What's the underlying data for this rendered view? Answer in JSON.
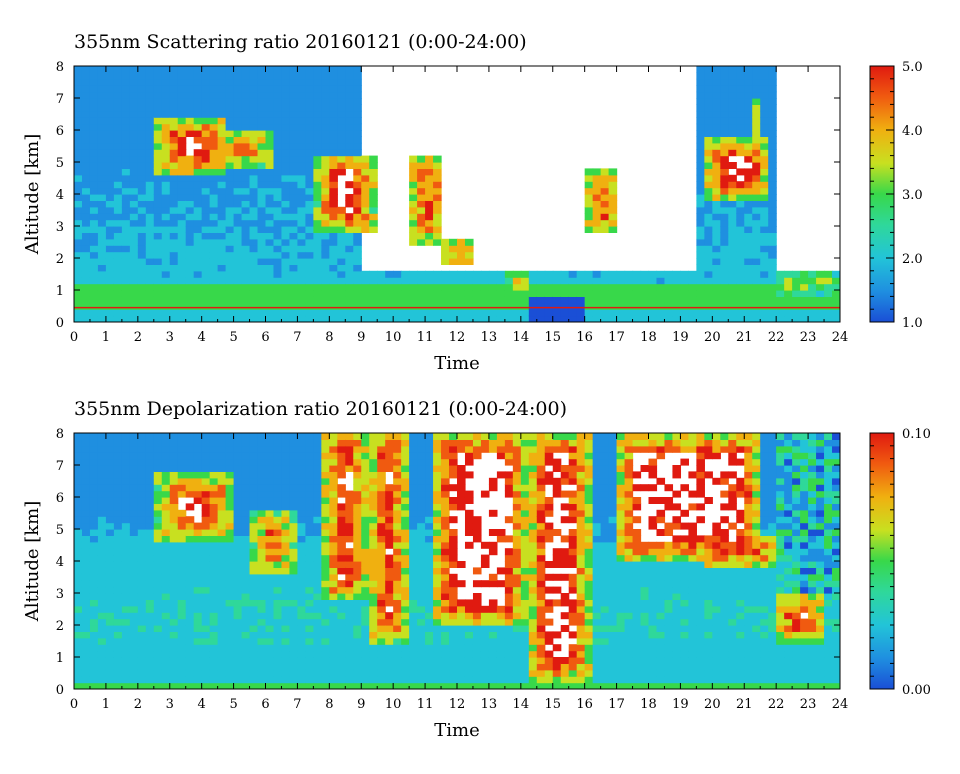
{
  "colors": {
    "colormap": [
      "#1a4fd6",
      "#1f8fe0",
      "#22c4d8",
      "#2fd89a",
      "#38d84a",
      "#c8e020",
      "#f0b010",
      "#f05a10",
      "#e01a10"
    ],
    "background": "#ffffff",
    "axis": "#000000"
  },
  "chart_data": [
    {
      "type": "heatmap",
      "title": "355nm Scattering ratio  20160121 (0:00-24:00)",
      "xlabel": "Time",
      "ylabel": "Altitude [km]",
      "xlim": [
        0,
        24
      ],
      "ylim": [
        0,
        8
      ],
      "x_ticks": [
        "0",
        "1",
        "2",
        "3",
        "4",
        "5",
        "6",
        "7",
        "8",
        "9",
        "10",
        "11",
        "12",
        "13",
        "14",
        "15",
        "16",
        "17",
        "18",
        "19",
        "20",
        "21",
        "22",
        "23",
        "24"
      ],
      "y_ticks": [
        "0",
        "1",
        "2",
        "3",
        "4",
        "5",
        "6",
        "7",
        "8"
      ],
      "colorbar": {
        "min": 1.0,
        "max": 5.0,
        "tick_labels": [
          "1.0",
          "2.0",
          "3.0",
          "4.0",
          "5.0"
        ],
        "tick_values": [
          1.0,
          2.0,
          3.0,
          4.0,
          5.0
        ]
      },
      "grid": false,
      "cloud_regions": [
        {
          "t0": 2.6,
          "t1": 4.8,
          "z0": 4.6,
          "z1": 6.4,
          "level": 0.95
        },
        {
          "t0": 4.5,
          "t1": 6.2,
          "z0": 4.8,
          "z1": 6.0,
          "level": 0.9
        },
        {
          "t0": 7.6,
          "t1": 9.4,
          "z0": 2.9,
          "z1": 5.3,
          "level": 1.0
        },
        {
          "t0": 10.5,
          "t1": 11.6,
          "z0": 2.5,
          "z1": 5.2,
          "level": 1.0
        },
        {
          "t0": 11.6,
          "t1": 12.6,
          "z0": 1.8,
          "z1": 2.6,
          "level": 1.0
        },
        {
          "t0": 13.5,
          "t1": 14.2,
          "z0": 0.9,
          "z1": 1.6,
          "level": 0.85
        },
        {
          "t0": 16.0,
          "t1": 17.1,
          "z0": 2.8,
          "z1": 4.7,
          "level": 1.0
        },
        {
          "t0": 19.8,
          "t1": 21.8,
          "z0": 3.8,
          "z1": 5.8,
          "level": 1.0
        },
        {
          "t0": 21.2,
          "t1": 21.5,
          "z0": 5.8,
          "z1": 7.1,
          "level": 0.9
        },
        {
          "t0": 22.0,
          "t1": 24.0,
          "z0": 0.8,
          "z1": 1.6,
          "level": 0.7
        }
      ]
    },
    {
      "type": "heatmap",
      "title": "355nm Depolarization ratio  20160121 (0:00-24:00)",
      "xlabel": "Time",
      "ylabel": "Altitude [km]",
      "xlim": [
        0,
        24
      ],
      "ylim": [
        0,
        8
      ],
      "x_ticks": [
        "0",
        "1",
        "2",
        "3",
        "4",
        "5",
        "6",
        "7",
        "8",
        "9",
        "10",
        "11",
        "12",
        "13",
        "14",
        "15",
        "16",
        "17",
        "18",
        "19",
        "20",
        "21",
        "22",
        "23",
        "24"
      ],
      "y_ticks": [
        "0",
        "1",
        "2",
        "3",
        "4",
        "5",
        "6",
        "7",
        "8"
      ],
      "colorbar": {
        "min": 0.0,
        "max": 0.1,
        "tick_labels": [
          "0.00",
          "0.10"
        ],
        "tick_values": [
          0.0,
          0.1
        ]
      },
      "grid": false,
      "cloud_regions": [
        {
          "t0": 2.6,
          "t1": 5.0,
          "z0": 4.6,
          "z1": 6.8,
          "level": 0.9
        },
        {
          "t0": 5.5,
          "t1": 7.0,
          "z0": 3.6,
          "z1": 5.6,
          "level": 0.85
        },
        {
          "t0": 7.8,
          "t1": 9.2,
          "z0": 2.8,
          "z1": 8.0,
          "level": 1.0
        },
        {
          "t0": 9.2,
          "t1": 10.5,
          "z0": 1.5,
          "z1": 8.0,
          "level": 1.0
        },
        {
          "t0": 11.2,
          "t1": 14.2,
          "z0": 2.0,
          "z1": 8.0,
          "level": 1.0
        },
        {
          "t0": 14.2,
          "t1": 16.2,
          "z0": 0.3,
          "z1": 8.0,
          "level": 1.0
        },
        {
          "t0": 17.0,
          "t1": 21.5,
          "z0": 4.0,
          "z1": 8.0,
          "level": 1.0
        },
        {
          "t0": 19.8,
          "t1": 21.9,
          "z0": 3.8,
          "z1": 4.8,
          "level": 1.0
        },
        {
          "t0": 22.0,
          "t1": 23.5,
          "z0": 1.5,
          "z1": 3.0,
          "level": 1.0
        }
      ]
    }
  ]
}
